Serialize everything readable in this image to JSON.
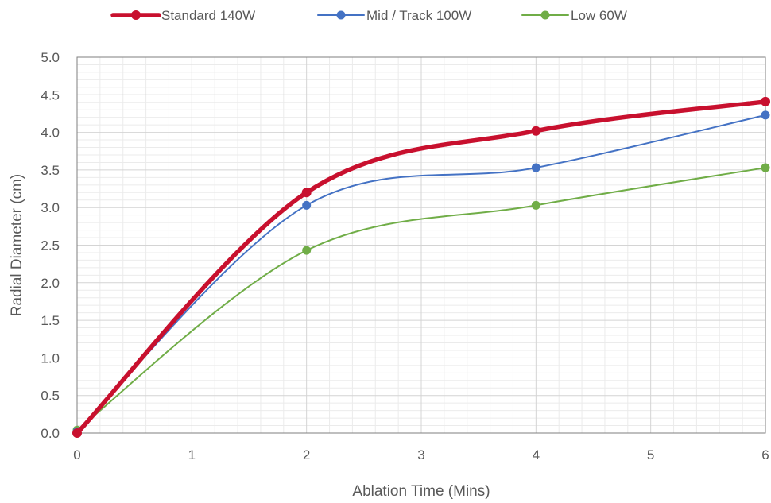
{
  "chart_data": {
    "type": "line",
    "title": "",
    "xlabel": "Ablation Time (Mins)",
    "ylabel": "Radial Diameter (cm)",
    "xlim": [
      0,
      6
    ],
    "ylim": [
      0,
      5
    ],
    "x_ticks": [
      0,
      1,
      2,
      3,
      4,
      5,
      6
    ],
    "y_ticks": [
      "0.0",
      "0.5",
      "1.0",
      "1.5",
      "2.0",
      "2.5",
      "3.0",
      "3.5",
      "4.0",
      "4.5",
      "5.0"
    ],
    "grid": true,
    "minor_grid": true,
    "smooth_lines": true,
    "legend_position": "top",
    "series": [
      {
        "name": "Standard 140W",
        "color": "#c8102e",
        "x": [
          0,
          2,
          4,
          6
        ],
        "y": [
          0.0,
          3.2,
          4.02,
          4.41
        ]
      },
      {
        "name": "Mid / Track 100W",
        "color": "#4472c4",
        "x": [
          0,
          2,
          4,
          6
        ],
        "y": [
          0.02,
          3.03,
          3.53,
          4.23
        ]
      },
      {
        "name": "Low 60W",
        "color": "#70ad47",
        "x": [
          0,
          2,
          4,
          6
        ],
        "y": [
          0.04,
          2.43,
          3.03,
          3.53
        ]
      }
    ]
  }
}
